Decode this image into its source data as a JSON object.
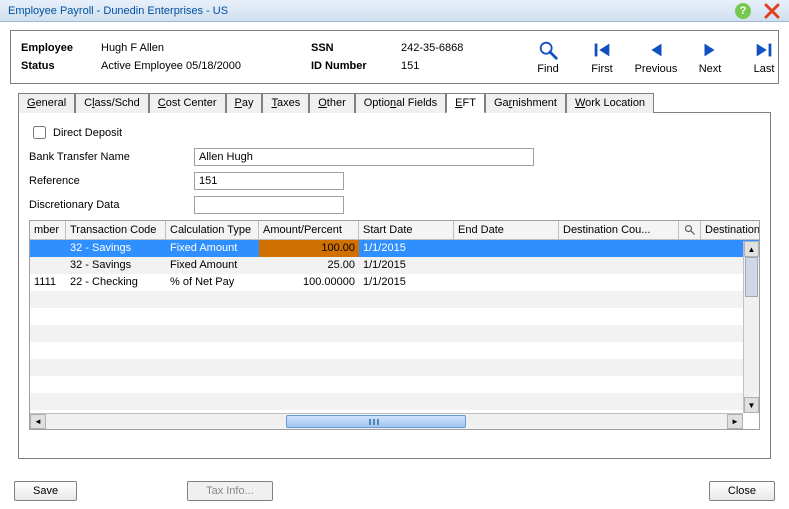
{
  "window": {
    "title": "Employee Payroll - Dunedin Enterprises - US"
  },
  "colors": {
    "title_text": "#0050a0",
    "selection_bg": "#2f8fff",
    "highlight_cell_bg": "#d07000",
    "nav_icon": "#1050c0",
    "grid_odd_bg": "#f2f2f2"
  },
  "header": {
    "employee_label": "Employee",
    "employee_value": "Hugh F Allen",
    "status_label": "Status",
    "status_value": "Active Employee 05/18/2000",
    "ssn_label": "SSN",
    "ssn_value": "242-35-6868",
    "idnum_label": "ID Number",
    "idnum_value": "151"
  },
  "nav": {
    "find": "Find",
    "first": "First",
    "previous": "Previous",
    "next": "Next",
    "last": "Last"
  },
  "tabs": {
    "general": "General",
    "class_schd": "Class/Schd",
    "cost_center": "Cost Center",
    "pay": "Pay",
    "taxes": "Taxes",
    "other": "Other",
    "optional_fields": "Optional Fields",
    "eft": "EFT",
    "garnishment": "Garnishment",
    "work_location": "Work Location",
    "active": "eft"
  },
  "eft": {
    "direct_deposit_label": "Direct Deposit",
    "direct_deposit_checked": false,
    "bank_transfer_label": "Bank Transfer Name",
    "bank_transfer_value": "Allen Hugh",
    "reference_label": "Reference",
    "reference_value": "151",
    "discretionary_label": "Discretionary Data",
    "discretionary_value": ""
  },
  "grid": {
    "columns": {
      "c0": "mber",
      "c1": "Transaction Code",
      "c2": "Calculation Type",
      "c3": "Amount/Percent",
      "c4": "Start Date",
      "c5": "End Date",
      "c6": "Destination Cou...",
      "c7": "",
      "c8": "Destination..."
    },
    "rows": [
      {
        "mber": "",
        "txn": "32 - Savings",
        "calc": "Fixed Amount",
        "amt": "100.00",
        "start": "1/1/2015",
        "end": "",
        "dc": "",
        "dest": "",
        "selected": true,
        "highlight_amt": true
      },
      {
        "mber": "",
        "txn": "32 - Savings",
        "calc": "Fixed Amount",
        "amt": "25.00",
        "start": "1/1/2015",
        "end": "",
        "dc": "",
        "dest": "",
        "selected": false
      },
      {
        "mber": "1111",
        "txn": "22 - Checking",
        "calc": "% of Net Pay",
        "amt": "100.00000",
        "start": "1/1/2015",
        "end": "",
        "dc": "",
        "dest": "",
        "selected": false
      }
    ]
  },
  "buttons": {
    "save": "Save",
    "tax_info": "Tax Info...",
    "close": "Close"
  }
}
